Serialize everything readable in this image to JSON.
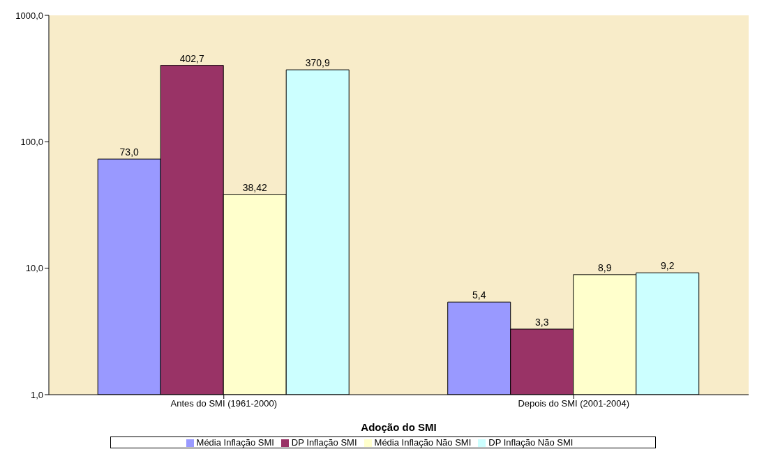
{
  "chart_data": {
    "type": "bar",
    "xlabel": "Adoção do SMI",
    "categories": [
      "Antes do SMI (1961-2000)",
      "Depois do SMI (2001-2004)"
    ],
    "series": [
      {
        "name": "Média Inflação SMI",
        "color": "#9999ff",
        "values": [
          73.0,
          5.4
        ],
        "value_labels": [
          "73,0",
          "5,4"
        ]
      },
      {
        "name": "DP Inflação SMI",
        "color": "#993366",
        "values": [
          402.7,
          3.3
        ],
        "value_labels": [
          "402,7",
          "3,3"
        ]
      },
      {
        "name": "Média Inflação Não SMI",
        "color": "#ffffcc",
        "values": [
          38.42,
          8.9
        ],
        "value_labels": [
          "38,42",
          "8,9"
        ]
      },
      {
        "name": "DP Inflação Não SMI",
        "color": "#ccffff",
        "values": [
          370.9,
          9.2
        ],
        "value_labels": [
          "370,9",
          "9,2"
        ]
      }
    ],
    "log": true,
    "ylim": [
      1,
      1000
    ],
    "yticks": [
      {
        "value": 1,
        "label": "1,0"
      },
      {
        "value": 10,
        "label": "10,0"
      },
      {
        "value": 100,
        "label": "100,0"
      },
      {
        "value": 1000,
        "label": "1000,0"
      }
    ],
    "legend": "bottom"
  }
}
